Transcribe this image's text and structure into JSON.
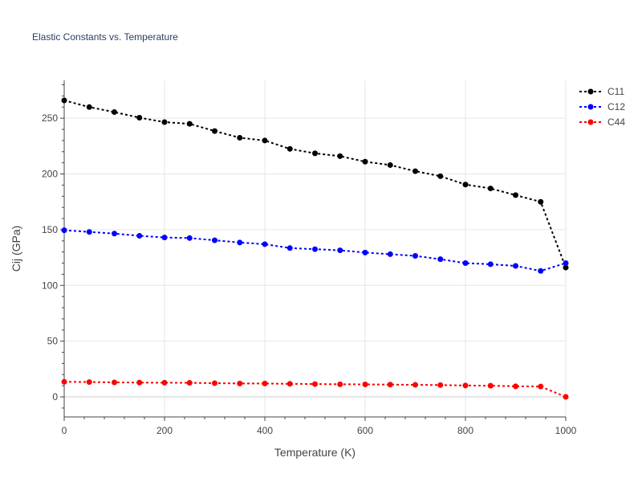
{
  "chart_data": {
    "type": "line",
    "title": "Elastic Constants vs. Temperature",
    "xlabel": "Temperature (K)",
    "ylabel": "Cij (GPa)",
    "xlim": [
      0,
      1000
    ],
    "ylim": [
      -18,
      284
    ],
    "xticks": [
      0,
      200,
      400,
      600,
      800,
      1000
    ],
    "yticks": [
      0,
      50,
      100,
      150,
      200,
      250
    ],
    "grid": true,
    "legend_position": "top-right",
    "x": [
      0,
      50,
      100,
      150,
      200,
      250,
      300,
      350,
      400,
      450,
      500,
      550,
      600,
      650,
      700,
      750,
      800,
      850,
      900,
      950,
      1000
    ],
    "series": [
      {
        "name": "C11",
        "color": "#000000",
        "values": [
          266,
          260,
          255.5,
          250.5,
          246.5,
          245,
          238.5,
          232.5,
          230,
          222.5,
          218.5,
          216,
          211,
          208,
          202.5,
          198,
          190.5,
          187,
          181,
          175,
          116
        ]
      },
      {
        "name": "C12",
        "color": "#0000ff",
        "values": [
          149.5,
          148,
          146.5,
          144.5,
          143,
          142.5,
          140.5,
          138.5,
          137,
          133.5,
          132.5,
          131.5,
          129.5,
          128,
          126.5,
          123.5,
          120,
          119,
          117.5,
          113,
          120
        ]
      },
      {
        "name": "C44",
        "color": "#ff0000",
        "values": [
          13.5,
          13.3,
          13,
          12.8,
          12.7,
          12.6,
          12.3,
          12,
          12,
          11.7,
          11.5,
          11.3,
          11.2,
          11,
          10.8,
          10.6,
          10.2,
          10,
          9.5,
          9.3,
          0
        ]
      }
    ]
  }
}
